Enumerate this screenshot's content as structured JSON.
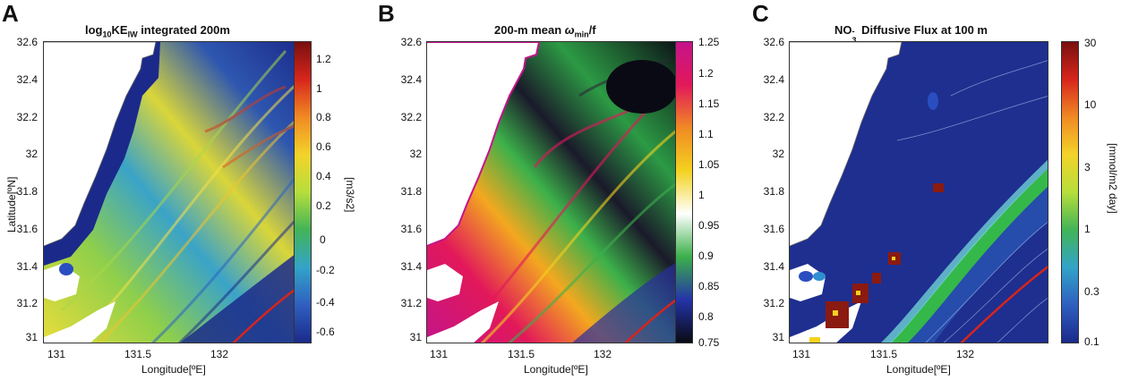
{
  "panels": [
    {
      "letter": "A",
      "title": "log10KEIW integrated 200m",
      "title_parts": {
        "pre": "log",
        "sub1": "10",
        "mid": "KE",
        "sub2": "IW",
        "post": " integrated 200m"
      },
      "ylabel": "Latitude[ºN]",
      "xlabel": "Longitude[ºE]",
      "yticks": [
        "32.6",
        "32.4",
        "32.2",
        "32",
        "31.8",
        "31.6",
        "31.4",
        "31.2",
        "31"
      ],
      "xticks": [
        "131",
        "131.5",
        "132"
      ],
      "colorbar_ticks": [
        "1.2",
        "1",
        "0.8",
        "0.6",
        "0.4",
        "0.2",
        "0",
        "-0.2",
        "-0.4",
        "-0.6"
      ],
      "colorbar_unit": "[m3/s2]",
      "colormap": "jet",
      "colors": {
        "ocean_low": "#1b2a8a",
        "ocean_mid": "#2f8fd1",
        "high": "#f2d02b",
        "peak": "#c81e1e",
        "land": "#ffffff"
      }
    },
    {
      "letter": "B",
      "title": "200-m mean ωmin/f",
      "title_parts": {
        "pre": "200-m mean ",
        "omega": "ω",
        "sub": "min",
        "post": "/f"
      },
      "ylabel": "",
      "xlabel": "Longitude[ºE]",
      "yticks": [
        "32.6",
        "32.4",
        "32.2",
        "32",
        "31.8",
        "31.6",
        "31.4",
        "31.2",
        "31"
      ],
      "xticks": [
        "131",
        "131.5",
        "132"
      ],
      "colorbar_ticks": [
        "1.25",
        "1.2",
        "1.15",
        "1.1",
        "1.05",
        "1",
        "0.95",
        "0.9",
        "0.85",
        "0.8",
        "0.75"
      ],
      "colorbar_unit": "",
      "colormap": "black-blue-green-white-yellow-red-magenta",
      "colors": {
        "low": "#0a0a14",
        "mid_low": "#2434a8",
        "mid": "#ffffff",
        "mid_high": "#f3d21f",
        "high": "#e2185a",
        "top": "#c4148a"
      }
    },
    {
      "letter": "C",
      "title": "NO3- Diffusive Flux at 100 m",
      "title_parts": {
        "pre": "NO",
        "sub": "3",
        "sup": "-",
        "post": " Diffusive Flux at 100 m"
      },
      "ylabel": "",
      "xlabel": "Longitude[ºE]",
      "yticks": [
        "32.6",
        "32.4",
        "32.2",
        "32",
        "31.8",
        "31.6",
        "31.4",
        "31.2",
        "31"
      ],
      "xticks": [
        "131",
        "131.5",
        "132"
      ],
      "colorbar_ticks": [
        "30",
        "10",
        "3",
        "1",
        "0.3",
        "0.1"
      ],
      "colorbar_unit": "[mmol/m2 day]",
      "colormap": "jet (log)",
      "colors": {
        "ocean": "#1e2f8f",
        "band": "#35b84a",
        "hot": "#8b1a10",
        "land": "#ffffff"
      }
    }
  ]
}
